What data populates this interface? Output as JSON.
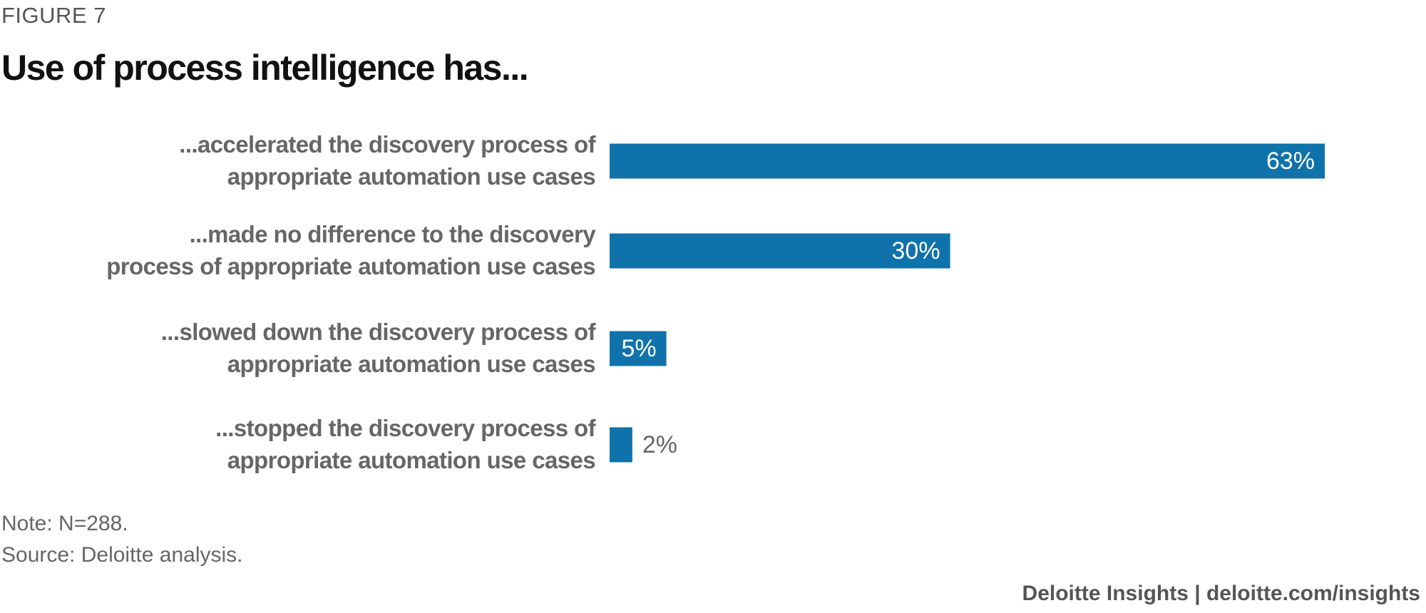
{
  "chart_data": {
    "type": "bar",
    "orientation": "horizontal",
    "figure_label": "FIGURE 7",
    "title": "Use of process intelligence has...",
    "categories": [
      "...accelerated the discovery process of\nappropriate automation use cases",
      "...made no difference to the discovery\nprocess of appropriate automation use cases",
      "...slowed down the discovery process of\nappropriate automation use cases",
      "...stopped the discovery process of\nappropriate automation use cases"
    ],
    "values": [
      63,
      30,
      5,
      2
    ],
    "value_labels": [
      "63%",
      "30%",
      "5%",
      "2%"
    ],
    "color": "#0f72aa",
    "note": "Note: N=288.",
    "source": "Source: Deloitte analysis.",
    "footer": "Deloitte Insights | deloitte.com/insights"
  }
}
